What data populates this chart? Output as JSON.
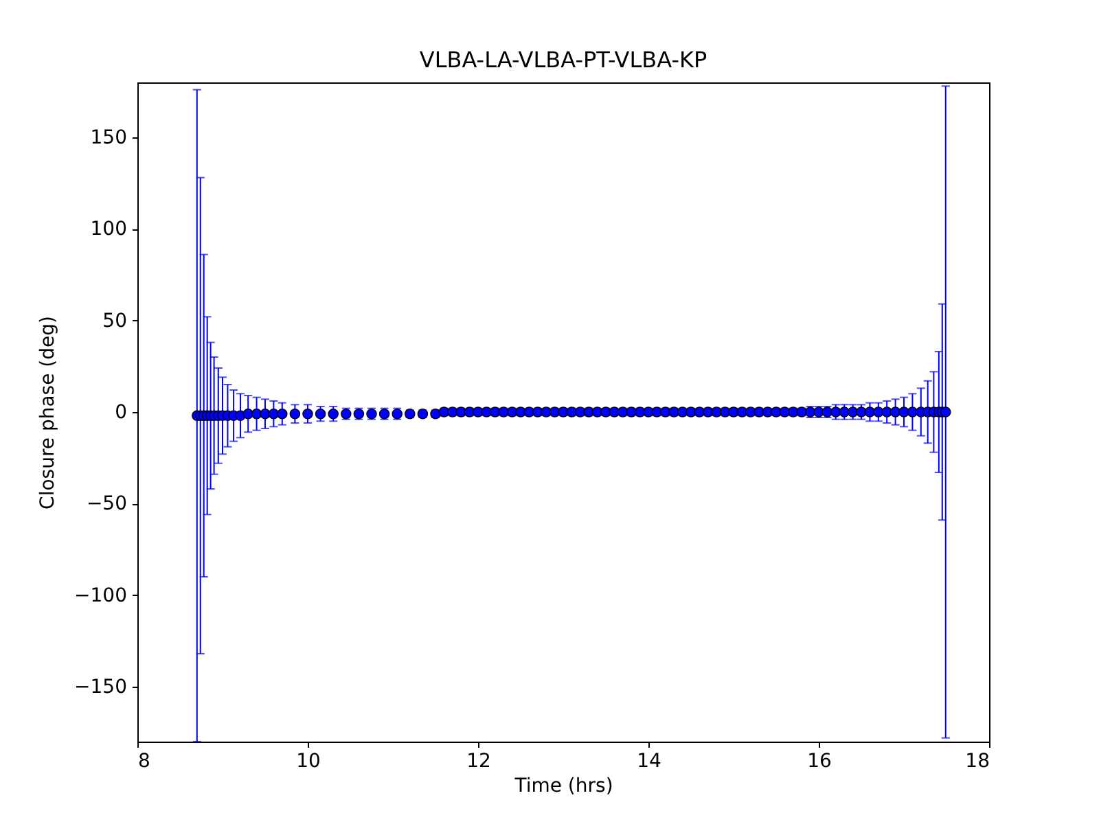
{
  "chart_data": {
    "type": "scatter",
    "title": "VLBA-LA-VLBA-PT-VLBA-KP",
    "xlabel": "Time (hrs)",
    "ylabel": "Closure phase (deg)",
    "xlim": [
      8,
      18
    ],
    "ylim": [
      -180,
      180
    ],
    "xticks": [
      8,
      10,
      12,
      14,
      16,
      18
    ],
    "yticks": [
      -150,
      -100,
      -50,
      0,
      50,
      100,
      150
    ],
    "marker": "circle",
    "series": [
      {
        "color": "#0000ff",
        "x": [
          8.7,
          8.74,
          8.78,
          8.82,
          8.86,
          8.9,
          8.95,
          9.0,
          9.06,
          9.13,
          9.21,
          9.3,
          9.4,
          9.5,
          9.6,
          9.7,
          9.85,
          10.0,
          10.15,
          10.3,
          10.45,
          10.6,
          10.75,
          10.9,
          11.05,
          11.2,
          11.35,
          11.5,
          11.6,
          11.7,
          11.8,
          11.9,
          12.0,
          12.1,
          12.2,
          12.3,
          12.4,
          12.5,
          12.6,
          12.7,
          12.8,
          12.9,
          13.0,
          13.1,
          13.2,
          13.3,
          13.4,
          13.5,
          13.6,
          13.7,
          13.8,
          13.9,
          14.0,
          14.1,
          14.2,
          14.3,
          14.4,
          14.5,
          14.6,
          14.7,
          14.8,
          14.9,
          15.0,
          15.1,
          15.2,
          15.3,
          15.4,
          15.5,
          15.6,
          15.7,
          15.8,
          15.9,
          16.0,
          16.1,
          16.2,
          16.3,
          16.4,
          16.5,
          16.6,
          16.7,
          16.8,
          16.9,
          17.0,
          17.1,
          17.2,
          17.28,
          17.35,
          17.41,
          17.45,
          17.49
        ],
        "values": [
          -2,
          -2,
          -2,
          -2,
          -2,
          -2,
          -2,
          -2,
          -2,
          -2,
          -2,
          -1,
          -1,
          -1,
          -1,
          -1,
          -1,
          -1,
          -1,
          -1,
          -1,
          -1,
          -1,
          -1,
          -1,
          -1,
          -1,
          -1,
          0,
          0,
          0,
          0,
          0,
          0,
          0,
          0,
          0,
          0,
          0,
          0,
          0,
          0,
          0,
          0,
          0,
          0,
          0,
          0,
          0,
          0,
          0,
          0,
          0,
          0,
          0,
          0,
          0,
          0,
          0,
          0,
          0,
          0,
          0,
          0,
          0,
          0,
          0,
          0,
          0,
          0,
          0,
          0,
          0,
          0,
          0,
          0,
          0,
          0,
          0,
          0,
          0,
          0,
          0,
          0,
          0,
          0,
          0,
          0,
          0,
          0
        ],
        "errors": [
          178,
          130,
          88,
          54,
          40,
          32,
          26,
          21,
          17,
          14,
          12,
          10,
          9,
          8,
          7,
          6,
          5,
          5,
          4,
          4,
          3,
          3,
          3,
          3,
          3,
          2,
          2,
          2,
          2,
          2,
          2,
          2,
          2,
          2,
          2,
          2,
          2,
          2,
          2,
          2,
          2,
          2,
          2,
          2,
          2,
          2,
          2,
          2,
          2,
          2,
          2,
          2,
          2,
          2,
          2,
          2,
          2,
          2,
          2,
          2,
          2,
          2,
          2,
          2,
          2,
          2,
          2,
          2,
          2,
          2,
          2,
          3,
          3,
          3,
          4,
          4,
          4,
          4,
          5,
          5,
          6,
          7,
          8,
          10,
          13,
          17,
          22,
          33,
          59,
          178
        ]
      }
    ]
  }
}
